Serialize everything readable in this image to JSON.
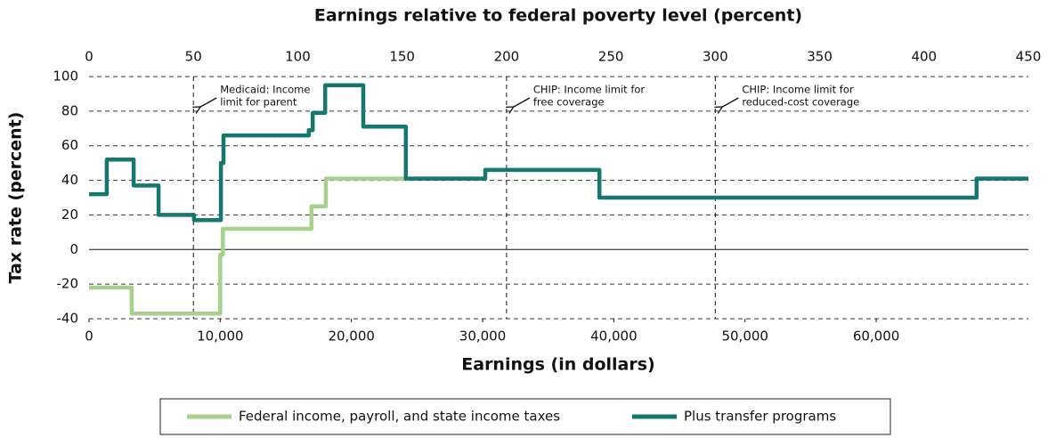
{
  "chart_data": {
    "type": "line",
    "title": "Earnings relative to federal poverty level (percent)",
    "xlabel": "Earnings (in dollars)",
    "ylabel": "Tax rate (percent)",
    "xlim": [
      0,
      71600
    ],
    "xticks": [
      0,
      {
        "value": 10000,
        "label": "10,000"
      },
      {
        "value": 20000,
        "label": "20,000"
      },
      {
        "value": 30000,
        "label": "30,000"
      },
      {
        "value": 40000,
        "label": "40,000"
      },
      {
        "value": 50000,
        "label": "50,000"
      },
      {
        "value": 60000,
        "label": "60,000"
      }
    ],
    "x2lim": [
      0,
      450
    ],
    "x2ticks": [
      0,
      50,
      100,
      150,
      200,
      250,
      300,
      350,
      400,
      450
    ],
    "ylim": [
      -40,
      100
    ],
    "yticks": [
      -40,
      -20,
      0,
      20,
      40,
      60,
      80,
      100
    ],
    "grid": true,
    "reference_lines": [
      {
        "x2": 50,
        "label": [
          "Medicaid: Income",
          "limit for parent"
        ]
      },
      {
        "x2": 200,
        "label": [
          "CHIP: Income limit for",
          "free coverage"
        ]
      },
      {
        "x2": 300,
        "label": [
          "CHIP: Income limit for",
          "reduced-cost coverage"
        ]
      }
    ],
    "legend": "bottom",
    "series": [
      {
        "name": "Federal income, payroll, and state income taxes",
        "color": "#a8d08d",
        "x": [
          0,
          3250,
          3250,
          10000,
          10000,
          10200,
          10200,
          16950,
          16950,
          18050,
          18050,
          24100
        ],
        "values": [
          -22,
          -22,
          -37,
          -37,
          -3,
          -3,
          12,
          12,
          25,
          25,
          41,
          41
        ]
      },
      {
        "name": "Plus transfer programs",
        "color": "#15786f",
        "x": [
          0,
          1350,
          1350,
          3400,
          3400,
          5300,
          5300,
          8000,
          8000,
          10050,
          10050,
          10250,
          10250,
          16750,
          16750,
          17050,
          17050,
          18000,
          18000,
          20900,
          20900,
          24150,
          24150,
          30200,
          30200,
          38900,
          38900,
          67650,
          67650,
          71600
        ],
        "values": [
          32,
          32,
          52,
          52,
          37,
          37,
          20,
          20,
          17,
          17,
          50,
          50,
          66,
          66,
          69,
          69,
          79,
          79,
          95,
          95,
          71,
          71,
          41,
          41,
          46,
          46,
          30,
          30,
          41,
          41
        ]
      }
    ]
  }
}
